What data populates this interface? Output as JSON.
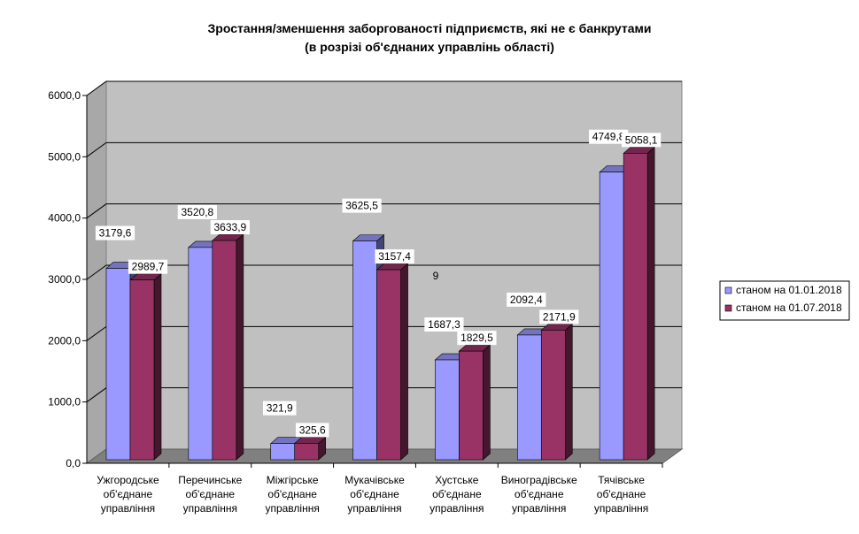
{
  "chart_data": {
    "type": "bar",
    "title": "Зростання/зменшення заборгованості підприємств, які не є банкрутами",
    "subtitle": "(в розрізі об'єднаних управлінь області)",
    "xlabel": "",
    "ylabel": "",
    "ylim": [
      0,
      6000
    ],
    "yticks": [
      "0,0",
      "1000,0",
      "2000,0",
      "3000,0",
      "4000,0",
      "5000,0",
      "6000,0"
    ],
    "grid": true,
    "legend_position": "right",
    "categories": [
      [
        "Ужгородське",
        "об'єднане",
        "управління"
      ],
      [
        "Перечинське",
        "об'єднане",
        "управління"
      ],
      [
        "Міжгірське",
        "об'єднане",
        "управління"
      ],
      [
        "Мукачівське",
        "об'єднане",
        "управління"
      ],
      [
        "Хустське",
        "об'єднане",
        "управління"
      ],
      [
        "Виноградівське",
        "об'єднане",
        "управління"
      ],
      [
        "Тячівське",
        "об'єднане",
        "управління"
      ]
    ],
    "series": [
      {
        "name": "станом на 01.01.2018",
        "color": "#9999FF",
        "values": [
          3179.6,
          3520.8,
          321.9,
          3625.5,
          1687.3,
          2092.4,
          4749.8
        ],
        "labels": [
          "3179,6",
          "3520,8",
          "321,9",
          "3625,5",
          "1687,3",
          "2092,4",
          "4749,8"
        ]
      },
      {
        "name": "станом на 01.07.2018",
        "color": "#993366",
        "values": [
          2989.7,
          3633.9,
          325.6,
          3157.4,
          1829.5,
          2171.9,
          5058.1
        ],
        "labels": [
          "2989,7",
          "3633,9",
          "325,6",
          "3157,4",
          "1829,5",
          "2171,9",
          "5058,1"
        ]
      }
    ],
    "annotations": [
      "9"
    ]
  }
}
